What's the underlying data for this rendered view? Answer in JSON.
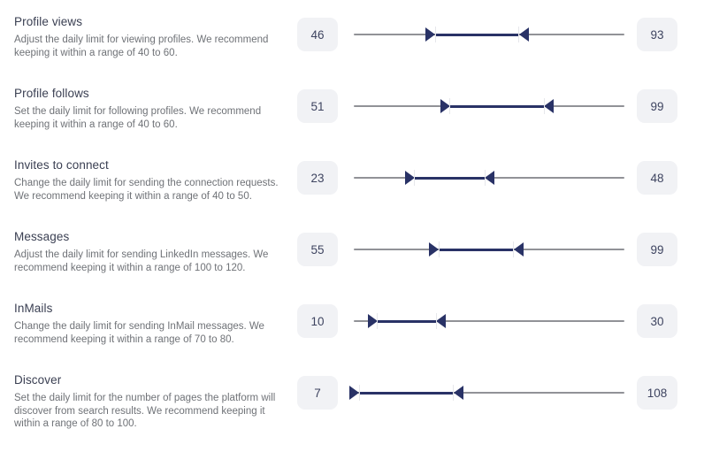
{
  "colors": {
    "accent": "#293266",
    "track": "#919297",
    "value_box_bg": "#f1f2f5",
    "title_text": "#3b4053",
    "description_text": "#6f7277"
  },
  "rows": [
    {
      "title": "Profile views",
      "description": "Adjust the daily limit for viewing profiles. We recommend keeping it within a range of 40 to 60.",
      "low_value": "46",
      "high_value": "93",
      "low_pct": 30.1,
      "high_pct": 61.1
    },
    {
      "title": "Profile follows",
      "description": "Set the daily limit for following profiles. We recommend keeping it within a range of 40 to 60.",
      "low_value": "51",
      "high_value": "99",
      "low_pct": 35.6,
      "high_pct": 70.3
    },
    {
      "title": "Invites to connect",
      "description": "Change the daily limit for sending the connection requests. We recommend keeping it within a range of 40 to 50.",
      "low_value": "23",
      "high_value": "48",
      "low_pct": 22.5,
      "high_pct": 48.4
    },
    {
      "title": "Messages",
      "description": "Adjust the daily limit for sending LinkedIn messages. We recommend keeping it within a range of 100 to 120.",
      "low_value": "55",
      "high_value": "99",
      "low_pct": 31.4,
      "high_pct": 59.0
    },
    {
      "title": "InMails",
      "description": "Change the daily limit for sending InMail messages. We recommend keeping it within a range of 70 to 80.",
      "low_value": "10",
      "high_value": "30",
      "low_pct": 8.8,
      "high_pct": 30.4
    },
    {
      "title": "Discover",
      "description": "Set the daily limit for the number of pages the platform will discover from search results. We recommend keeping it within a range of 80 to 100.",
      "low_value": "7",
      "high_value": "108",
      "low_pct": 2.1,
      "high_pct": 36.8
    }
  ]
}
